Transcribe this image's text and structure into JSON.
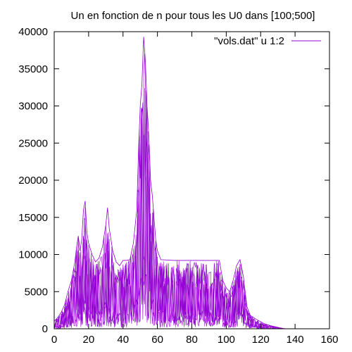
{
  "chart_data": {
    "type": "line",
    "title": "Un en fonction de n pour tous les U0 dans [100;500]",
    "xlim": [
      0,
      160
    ],
    "ylim": [
      0,
      40000
    ],
    "x_ticks": [
      0,
      20,
      40,
      60,
      80,
      100,
      120,
      140,
      160
    ],
    "y_ticks": [
      0,
      5000,
      10000,
      15000,
      20000,
      25000,
      30000,
      35000,
      40000
    ],
    "grid": false,
    "legend_position": "top-right",
    "color": "#9400d3",
    "series": [
      {
        "name": "\"vols.dat\" u 1:2",
        "n_start_values": 401,
        "envelope": [
          [
            0,
            1000
          ],
          [
            2,
            1500
          ],
          [
            4,
            2200
          ],
          [
            6,
            3200
          ],
          [
            8,
            5000
          ],
          [
            10,
            6500
          ],
          [
            12,
            9000
          ],
          [
            13,
            11000
          ],
          [
            14,
            12500
          ],
          [
            15,
            10500
          ],
          [
            16,
            12000
          ],
          [
            17,
            16000
          ],
          [
            18,
            17200
          ],
          [
            19,
            13000
          ],
          [
            20,
            11500
          ],
          [
            22,
            10000
          ],
          [
            24,
            9000
          ],
          [
            26,
            9500
          ],
          [
            28,
            11000
          ],
          [
            30,
            14000
          ],
          [
            31,
            16300
          ],
          [
            32,
            13500
          ],
          [
            34,
            10500
          ],
          [
            36,
            9000
          ],
          [
            38,
            8500
          ],
          [
            40,
            9200
          ],
          [
            42,
            9200
          ],
          [
            44,
            9300
          ],
          [
            46,
            11500
          ],
          [
            48,
            16000
          ],
          [
            49,
            24000
          ],
          [
            50,
            30000
          ],
          [
            51,
            33000
          ],
          [
            52,
            39300
          ],
          [
            53,
            36000
          ],
          [
            54,
            30000
          ],
          [
            55,
            26000
          ],
          [
            56,
            20000
          ],
          [
            57,
            18000
          ],
          [
            58,
            15000
          ],
          [
            59,
            12000
          ],
          [
            60,
            10500
          ],
          [
            62,
            9300
          ],
          [
            70,
            9200
          ],
          [
            80,
            9200
          ],
          [
            90,
            9200
          ],
          [
            96,
            9200
          ],
          [
            98,
            6500
          ],
          [
            100,
            5500
          ],
          [
            102,
            5000
          ],
          [
            104,
            6500
          ],
          [
            106,
            8500
          ],
          [
            108,
            9300
          ],
          [
            110,
            7000
          ],
          [
            112,
            3000
          ],
          [
            114,
            1800
          ],
          [
            118,
            1200
          ],
          [
            122,
            700
          ],
          [
            126,
            400
          ],
          [
            130,
            200
          ],
          [
            133,
            50
          ],
          [
            135,
            0
          ]
        ]
      }
    ]
  }
}
